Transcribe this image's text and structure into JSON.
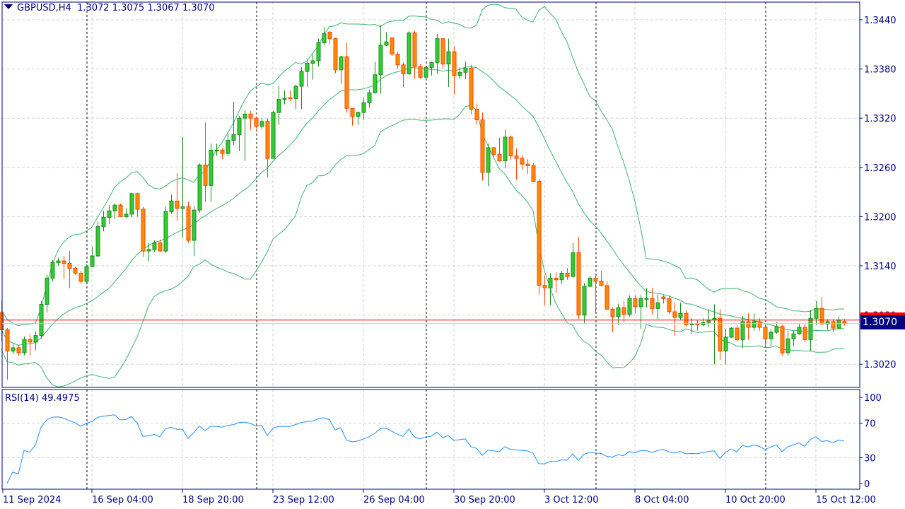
{
  "header": {
    "symbol": "GBPUSD,H4",
    "open": "1.3072",
    "high": "1.3075",
    "low": "1.3067",
    "close": "1.3070"
  },
  "rsi_panel": {
    "label": "RSI(14)",
    "value": "49.4975",
    "levels": [
      "100",
      "70",
      "30",
      "0"
    ]
  },
  "current_price_label": "1.3070",
  "colors": {
    "bull_body": "#32cd32",
    "bull_edge": "#1e8c1e",
    "bear_body": "#ff8c00",
    "bear_edge": "#ff4500",
    "bands": "#3cb371",
    "rsi": "#1e90ff",
    "axis": "#000080",
    "grid": "#d3d3d3",
    "price_line": "#ff0000"
  },
  "chart_data": [
    {
      "type": "candlestick",
      "indicator": "Bollinger Bands (20, 2)",
      "x_labels": [
        "11 Sep 2024",
        "16 Sep 04:00",
        "18 Sep 20:00",
        "23 Sep 12:00",
        "26 Sep 04:00",
        "30 Sep 20:00",
        "3 Oct 12:00",
        "8 Oct 04:00",
        "10 Oct 20:00",
        "15 Oct 12:00"
      ],
      "y_ticks": [
        "1.3440",
        "1.3380",
        "1.3320",
        "1.3260",
        "1.3200",
        "1.3140",
        "1.3080",
        "1.3020"
      ],
      "ylim": [
        1.3,
        1.346
      ],
      "grid": true,
      "current_price": 1.307,
      "open": [
        1.3083,
        1.3062,
        1.3036,
        1.304,
        1.3034,
        1.305,
        1.3047,
        1.3055,
        1.3093,
        1.3125,
        1.3144,
        1.3146,
        1.3143,
        1.3137,
        1.3131,
        1.3121,
        1.3139,
        1.3152,
        1.3188,
        1.3199,
        1.3207,
        1.3214,
        1.32,
        1.3203,
        1.3228,
        1.3209,
        1.3158,
        1.316,
        1.3168,
        1.3158,
        1.3206,
        1.3219,
        1.321,
        1.3212,
        1.3171,
        1.3208,
        1.3263,
        1.3238,
        1.3281,
        1.3281,
        1.3277,
        1.3293,
        1.33,
        1.332,
        1.3325,
        1.332,
        1.331,
        1.3316,
        1.3271,
        1.3327,
        1.3343,
        1.3345,
        1.3344,
        1.3359,
        1.3377,
        1.3387,
        1.339,
        1.3412,
        1.3425,
        1.3417,
        1.3379,
        1.3395,
        1.3332,
        1.3322,
        1.3327,
        1.3339,
        1.3351,
        1.3373,
        1.3409,
        1.3418,
        1.3398,
        1.3385,
        1.3374,
        1.3424,
        1.3383,
        1.337,
        1.3382,
        1.3388,
        1.3417,
        1.3386,
        1.3401,
        1.3372,
        1.3376,
        1.3381,
        1.3331,
        1.3318,
        1.3254,
        1.3284,
        1.3276,
        1.3268,
        1.3297,
        1.3274,
        1.3271,
        1.3264,
        1.3262,
        1.3243,
        1.3116,
        1.3113,
        1.3125,
        1.3123,
        1.3131,
        1.3127,
        1.3156,
        1.308,
        1.3115,
        1.3125,
        1.3121,
        1.3116,
        1.3087,
        1.3078,
        1.3089,
        1.3081,
        1.31,
        1.309,
        1.31,
        1.31,
        1.3088,
        1.3102,
        1.31,
        1.3084,
        1.3077,
        1.3082,
        1.3068,
        1.3069,
        1.3068,
        1.3071,
        1.3074,
        1.3076,
        1.3036,
        1.3053,
        1.3064,
        1.305,
        1.3072,
        1.3065,
        1.3072,
        1.3065,
        1.3051,
        1.3059,
        1.3066,
        1.3034,
        1.3051,
        1.3057,
        1.3065,
        1.305,
        1.3076,
        1.3088,
        1.3069,
        1.3072,
        1.3064,
        1.3072
      ],
      "high": [
        1.3098,
        1.3064,
        1.3045,
        1.3043,
        1.3054,
        1.3056,
        1.306,
        1.3097,
        1.3129,
        1.3147,
        1.315,
        1.3152,
        1.3158,
        1.3139,
        1.3134,
        1.3142,
        1.3163,
        1.3194,
        1.3207,
        1.3214,
        1.3216,
        1.3216,
        1.321,
        1.3229,
        1.3229,
        1.3212,
        1.3168,
        1.3171,
        1.3172,
        1.3212,
        1.3227,
        1.3253,
        1.3297,
        1.3218,
        1.3213,
        1.3265,
        1.3315,
        1.3289,
        1.3289,
        1.3284,
        1.3301,
        1.334,
        1.3323,
        1.333,
        1.3329,
        1.3321,
        1.332,
        1.332,
        1.3329,
        1.3359,
        1.3354,
        1.3354,
        1.3361,
        1.3382,
        1.3391,
        1.3398,
        1.3417,
        1.3431,
        1.3426,
        1.3418,
        1.3396,
        1.3412,
        1.3332,
        1.3328,
        1.3345,
        1.3355,
        1.3389,
        1.3434,
        1.3425,
        1.3418,
        1.3401,
        1.3388,
        1.3426,
        1.3427,
        1.3386,
        1.3384,
        1.3389,
        1.3423,
        1.3417,
        1.3417,
        1.3408,
        1.3382,
        1.3389,
        1.3385,
        1.3338,
        1.3327,
        1.3289,
        1.3285,
        1.3296,
        1.3306,
        1.3299,
        1.3283,
        1.3275,
        1.327,
        1.3265,
        1.3246,
        1.3128,
        1.3131,
        1.3132,
        1.3134,
        1.3137,
        1.3168,
        1.3175,
        1.3119,
        1.3128,
        1.3128,
        1.3134,
        1.3121,
        1.3089,
        1.3094,
        1.3097,
        1.3104,
        1.3104,
        1.3104,
        1.3113,
        1.3113,
        1.3105,
        1.3104,
        1.3104,
        1.3095,
        1.3095,
        1.3086,
        1.3076,
        1.3074,
        1.3076,
        1.3087,
        1.3093,
        1.3087,
        1.3063,
        1.3065,
        1.3068,
        1.3079,
        1.3082,
        1.3082,
        1.3076,
        1.3068,
        1.3063,
        1.3071,
        1.3068,
        1.3061,
        1.3061,
        1.3069,
        1.3069,
        1.3086,
        1.3097,
        1.3102,
        1.3075,
        1.3075,
        1.3078,
        1.3075
      ],
      "low": [
        1.3048,
        1.3001,
        1.3032,
        1.303,
        1.3031,
        1.3031,
        1.3037,
        1.3051,
        1.3083,
        1.3121,
        1.314,
        1.3124,
        1.3113,
        1.3129,
        1.3118,
        1.3119,
        1.3138,
        1.3151,
        1.3182,
        1.3191,
        1.3197,
        1.32,
        1.3198,
        1.3199,
        1.32,
        1.3151,
        1.3146,
        1.3157,
        1.3157,
        1.3156,
        1.3203,
        1.3195,
        1.3174,
        1.3168,
        1.3152,
        1.3205,
        1.3218,
        1.3218,
        1.3274,
        1.327,
        1.3274,
        1.3287,
        1.328,
        1.3268,
        1.3306,
        1.3307,
        1.3307,
        1.3248,
        1.3271,
        1.3312,
        1.3337,
        1.3341,
        1.3331,
        1.3331,
        1.3358,
        1.3367,
        1.3383,
        1.3409,
        1.341,
        1.3375,
        1.3362,
        1.3327,
        1.3311,
        1.3312,
        1.3318,
        1.3333,
        1.335,
        1.335,
        1.3408,
        1.3396,
        1.338,
        1.3358,
        1.3373,
        1.3368,
        1.3368,
        1.3368,
        1.3372,
        1.3374,
        1.3381,
        1.3358,
        1.3349,
        1.3368,
        1.3368,
        1.3325,
        1.3312,
        1.3244,
        1.3237,
        1.3273,
        1.3267,
        1.3259,
        1.3269,
        1.3245,
        1.3257,
        1.3252,
        1.3242,
        1.3105,
        1.3092,
        1.3092,
        1.3107,
        1.3118,
        1.3123,
        1.3126,
        1.3075,
        1.307,
        1.3114,
        1.3082,
        1.3115,
        1.3087,
        1.3059,
        1.3068,
        1.3071,
        1.3078,
        1.3082,
        1.3063,
        1.3089,
        1.3081,
        1.3075,
        1.3094,
        1.3081,
        1.3055,
        1.3074,
        1.3066,
        1.3057,
        1.3061,
        1.3066,
        1.3066,
        1.302,
        1.3025,
        1.302,
        1.3052,
        1.3048,
        1.304,
        1.305,
        1.3061,
        1.3061,
        1.304,
        1.3042,
        1.3057,
        1.3031,
        1.3031,
        1.3042,
        1.3056,
        1.3047,
        1.3036,
        1.3068,
        1.3068,
        1.3062,
        1.3059,
        1.3064,
        1.3067
      ],
      "close": [
        1.3062,
        1.3036,
        1.304,
        1.3034,
        1.305,
        1.3047,
        1.3055,
        1.3093,
        1.3125,
        1.3144,
        1.3146,
        1.3143,
        1.3137,
        1.3131,
        1.3121,
        1.3139,
        1.3152,
        1.3188,
        1.3199,
        1.3207,
        1.3214,
        1.32,
        1.3203,
        1.3228,
        1.3209,
        1.3158,
        1.316,
        1.3168,
        1.3158,
        1.3206,
        1.3219,
        1.321,
        1.3212,
        1.3171,
        1.3208,
        1.3263,
        1.3238,
        1.3281,
        1.3281,
        1.3277,
        1.3293,
        1.33,
        1.332,
        1.3325,
        1.332,
        1.331,
        1.3316,
        1.3271,
        1.3327,
        1.3343,
        1.3344,
        1.3344,
        1.3359,
        1.3377,
        1.3387,
        1.339,
        1.3412,
        1.3423,
        1.3417,
        1.3379,
        1.3395,
        1.3332,
        1.3322,
        1.3327,
        1.3339,
        1.3351,
        1.3373,
        1.3409,
        1.3413,
        1.3398,
        1.3385,
        1.3374,
        1.3424,
        1.3383,
        1.337,
        1.3382,
        1.3388,
        1.3417,
        1.3386,
        1.3401,
        1.3372,
        1.3376,
        1.3381,
        1.3331,
        1.3318,
        1.3254,
        1.3284,
        1.3276,
        1.3268,
        1.3297,
        1.3274,
        1.3271,
        1.3264,
        1.3262,
        1.3243,
        1.3116,
        1.3113,
        1.3125,
        1.3123,
        1.3131,
        1.3127,
        1.3156,
        1.308,
        1.3115,
        1.3125,
        1.3121,
        1.3116,
        1.3087,
        1.3078,
        1.3089,
        1.3081,
        1.31,
        1.309,
        1.31,
        1.31,
        1.3088,
        1.3095,
        1.31,
        1.3084,
        1.3077,
        1.3082,
        1.3068,
        1.3069,
        1.3068,
        1.3071,
        1.3074,
        1.3076,
        1.3036,
        1.3053,
        1.3064,
        1.305,
        1.3072,
        1.3065,
        1.3072,
        1.3065,
        1.3051,
        1.3059,
        1.3066,
        1.3034,
        1.3051,
        1.3057,
        1.3065,
        1.305,
        1.3076,
        1.3088,
        1.3069,
        1.3072,
        1.3064,
        1.3074,
        1.307
      ]
    },
    {
      "type": "line",
      "indicator": "RSI(14)",
      "ylim": [
        0,
        100
      ],
      "y_ticks": [
        "100",
        "70",
        "30",
        "0"
      ],
      "levels": [
        70,
        30
      ]
    }
  ]
}
